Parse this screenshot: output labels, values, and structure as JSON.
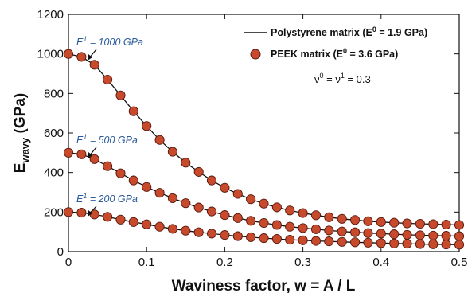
{
  "chart_data": {
    "type": "line",
    "title": "",
    "xlabel": "Waviness factor, w = A / L",
    "ylabel": {
      "main": "E",
      "sub": "wavy",
      "unit": " (GPa)"
    },
    "xlim": [
      0,
      0.5
    ],
    "ylim": [
      0,
      1200
    ],
    "x_ticks": [
      "0",
      "0.1",
      "0.2",
      "0.3",
      "0.4",
      "0.5"
    ],
    "x_tick_values": [
      0,
      0.1,
      0.2,
      0.3,
      0.4,
      0.5
    ],
    "y_ticks": [
      "0",
      "200",
      "400",
      "600",
      "800",
      "1000",
      "1200"
    ],
    "y_tick_values": [
      0,
      200,
      400,
      600,
      800,
      1000,
      1200
    ],
    "grid": false,
    "legend_position": "top-right",
    "legend": [
      {
        "label": "Polystyrene matrix (E",
        "sup": "0",
        "tail": " = 1.9 GPa)",
        "kind": "line"
      },
      {
        "label": "PEEK matrix (E",
        "sup": "0",
        "tail": " = 3.6 GPa)",
        "kind": "marker"
      }
    ],
    "nu_annotation": {
      "nu": "ν",
      "sup0": "0",
      "eq": " = ν",
      "sup1": "1",
      "tail": " = 0.3"
    },
    "annotations": [
      {
        "text": "E",
        "sup": "1",
        "tail": " = 1000 GPa",
        "series": 0
      },
      {
        "text": "E",
        "sup": "1",
        "tail": " = 500 GPa",
        "series": 1
      },
      {
        "text": "E",
        "sup": "1",
        "tail": " = 200 GPa",
        "series": 2
      }
    ],
    "colors": {
      "line": "#111111",
      "marker_fill": "#c84a2d",
      "marker_edge": "#5a1a0e",
      "annotation": "#2a5a9a"
    },
    "series": [
      {
        "E1": 1000,
        "x": [
          0,
          0.0167,
          0.0333,
          0.05,
          0.0667,
          0.0833,
          0.1,
          0.1167,
          0.1333,
          0.15,
          0.1667,
          0.1833,
          0.2,
          0.2167,
          0.2333,
          0.25,
          0.2667,
          0.2833,
          0.3,
          0.3167,
          0.3333,
          0.35,
          0.3667,
          0.3833,
          0.4,
          0.4167,
          0.4333,
          0.45,
          0.4667,
          0.4833,
          0.5
        ],
        "values": [
          1000,
          985,
          945,
          870,
          790,
          710,
          635,
          565,
          505,
          450,
          403,
          360,
          323,
          292,
          265,
          243,
          224,
          208,
          195,
          184,
          174,
          166,
          160,
          154,
          150,
          146,
          143,
          141,
          139,
          137,
          135
        ]
      },
      {
        "E1": 500,
        "x": [
          0,
          0.0167,
          0.0333,
          0.05,
          0.0667,
          0.0833,
          0.1,
          0.1167,
          0.1333,
          0.15,
          0.1667,
          0.1833,
          0.2,
          0.2167,
          0.2333,
          0.25,
          0.2667,
          0.2833,
          0.3,
          0.3167,
          0.3333,
          0.35,
          0.3667,
          0.3833,
          0.4,
          0.4167,
          0.4333,
          0.45,
          0.4667,
          0.4833,
          0.5
        ],
        "values": [
          500,
          492,
          468,
          432,
          396,
          360,
          327,
          297,
          270,
          245,
          223,
          203,
          185,
          170,
          156,
          145,
          135,
          126,
          119,
          113,
          107,
          102,
          98,
          94,
          91,
          88,
          85,
          83,
          81,
          80,
          78
        ]
      },
      {
        "E1": 200,
        "x": [
          0,
          0.0167,
          0.0333,
          0.05,
          0.0667,
          0.0833,
          0.1,
          0.1167,
          0.1333,
          0.15,
          0.1667,
          0.1833,
          0.2,
          0.2167,
          0.2333,
          0.25,
          0.2667,
          0.2833,
          0.3,
          0.3167,
          0.3333,
          0.35,
          0.3667,
          0.3833,
          0.4,
          0.4167,
          0.4333,
          0.45,
          0.4667,
          0.4833,
          0.5
        ],
        "values": [
          200,
          197,
          188,
          176,
          162,
          150,
          138,
          126,
          115,
          106,
          98,
          91,
          84,
          78,
          73,
          68,
          64,
          60,
          57,
          54,
          52,
          49,
          47,
          45,
          43,
          41,
          40,
          38,
          37,
          36,
          35
        ]
      }
    ]
  }
}
